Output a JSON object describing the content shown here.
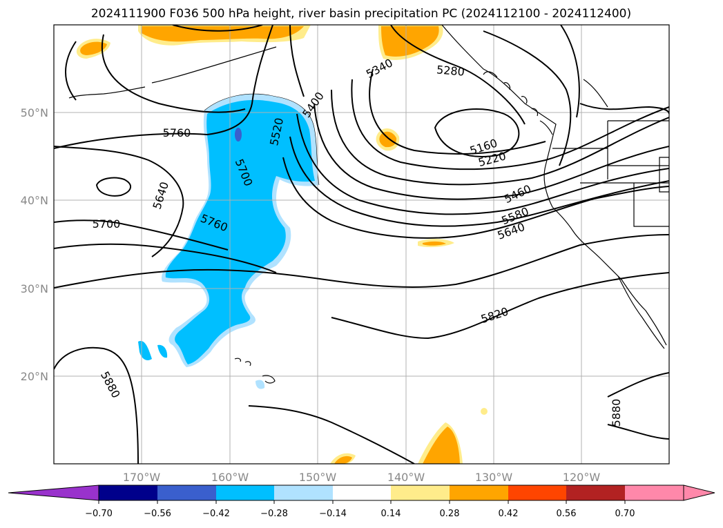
{
  "title": "2024111900 F036 500 hPa height, river basin precipitation PC (2024112100 - 2024112400)",
  "lat_labels": [
    "50°N",
    "40°N",
    "30°N",
    "20°N"
  ],
  "lon_labels": [
    "170°W",
    "160°W",
    "150°W",
    "140°W",
    "130°W",
    "120°W"
  ],
  "contour_labels": [
    "5760",
    "5640",
    "5700",
    "5700",
    "5760",
    "5520",
    "5400",
    "5340",
    "5280",
    "5160",
    "5220",
    "5460",
    "5580",
    "5640",
    "5820",
    "5880",
    "5880"
  ],
  "colorbar": {
    "ticks": [
      "−0.70",
      "−0.56",
      "−0.42",
      "−0.28",
      "−0.14",
      "0.14",
      "0.28",
      "0.42",
      "0.56",
      "0.70"
    ],
    "colors": [
      "#9932cc",
      "#00008b",
      "#3a5fcd",
      "#00bfff",
      "#b0e2ff",
      "#ffffff",
      "#ffec8b",
      "#ffa500",
      "#ff4500",
      "#b22222",
      "#ff88aa"
    ]
  }
}
